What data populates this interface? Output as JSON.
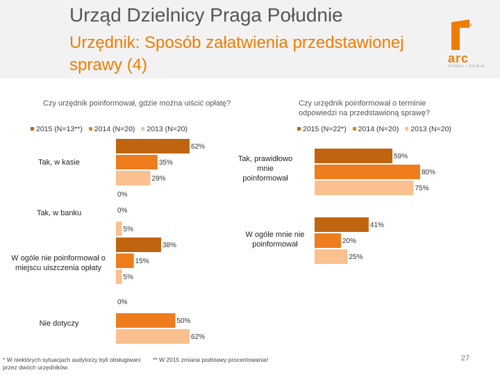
{
  "header": {
    "title": "Urząd Dzielnicy Praga Południe",
    "subtitle": "Urzędnik: Sposób załatwienia przedstawionej sprawy (4)",
    "logo_text": "arc",
    "logo_subtext": "RYNEK I OPINIA"
  },
  "colors": {
    "s2015": "#c0640f",
    "s2014": "#ee7d1e",
    "s2013": "#fac090"
  },
  "chart_data": [
    {
      "type": "bar",
      "orientation": "horizontal",
      "title": "Czy urzędnik poinformował, gdzie można uiścić opłatę?",
      "legend": [
        "2015 (N=13**)",
        "2014 (N=20)",
        "2013 (N=20)"
      ],
      "categories": [
        "Tak, w kasie",
        "Tak, w banku",
        "W ogóle nie poinformował o miejscu uiszczenia opłaty",
        "Nie dotyczy"
      ],
      "series": [
        {
          "name": "2015 (N=13**)",
          "values": [
            62,
            0,
            38,
            0
          ]
        },
        {
          "name": "2014 (N=20)",
          "values": [
            35,
            0,
            15,
            50
          ]
        },
        {
          "name": "2013 (N=20)",
          "values": [
            29,
            5,
            5,
            62
          ]
        }
      ],
      "xlim": [
        0,
        100
      ],
      "unit": "%"
    },
    {
      "type": "bar",
      "orientation": "horizontal",
      "title": "Czy urzędnik poinformował o terminie odpowiedzi na przedstawioną sprawę?",
      "legend": [
        "2015 (N=22*)",
        "2014 (N=20)",
        "2013 (N=20)"
      ],
      "categories": [
        "Tak, prawidłowo mnie poinformował",
        "W ogóle mnie nie poinformował"
      ],
      "series": [
        {
          "name": "2015 (N=22*)",
          "values": [
            59,
            41
          ]
        },
        {
          "name": "2014 (N=20)",
          "values": [
            80,
            20
          ]
        },
        {
          "name": "2013 (N=20)",
          "values": [
            75,
            25
          ]
        }
      ],
      "xlim": [
        0,
        100
      ],
      "unit": "%"
    }
  ],
  "footnotes": {
    "left": "* W niektórych sytuacjach audytorzy byli obsługiwani przez dwóch urzędników.",
    "right": "** W 2015 zmiana podstawy procentowania!"
  },
  "page_number": "27"
}
